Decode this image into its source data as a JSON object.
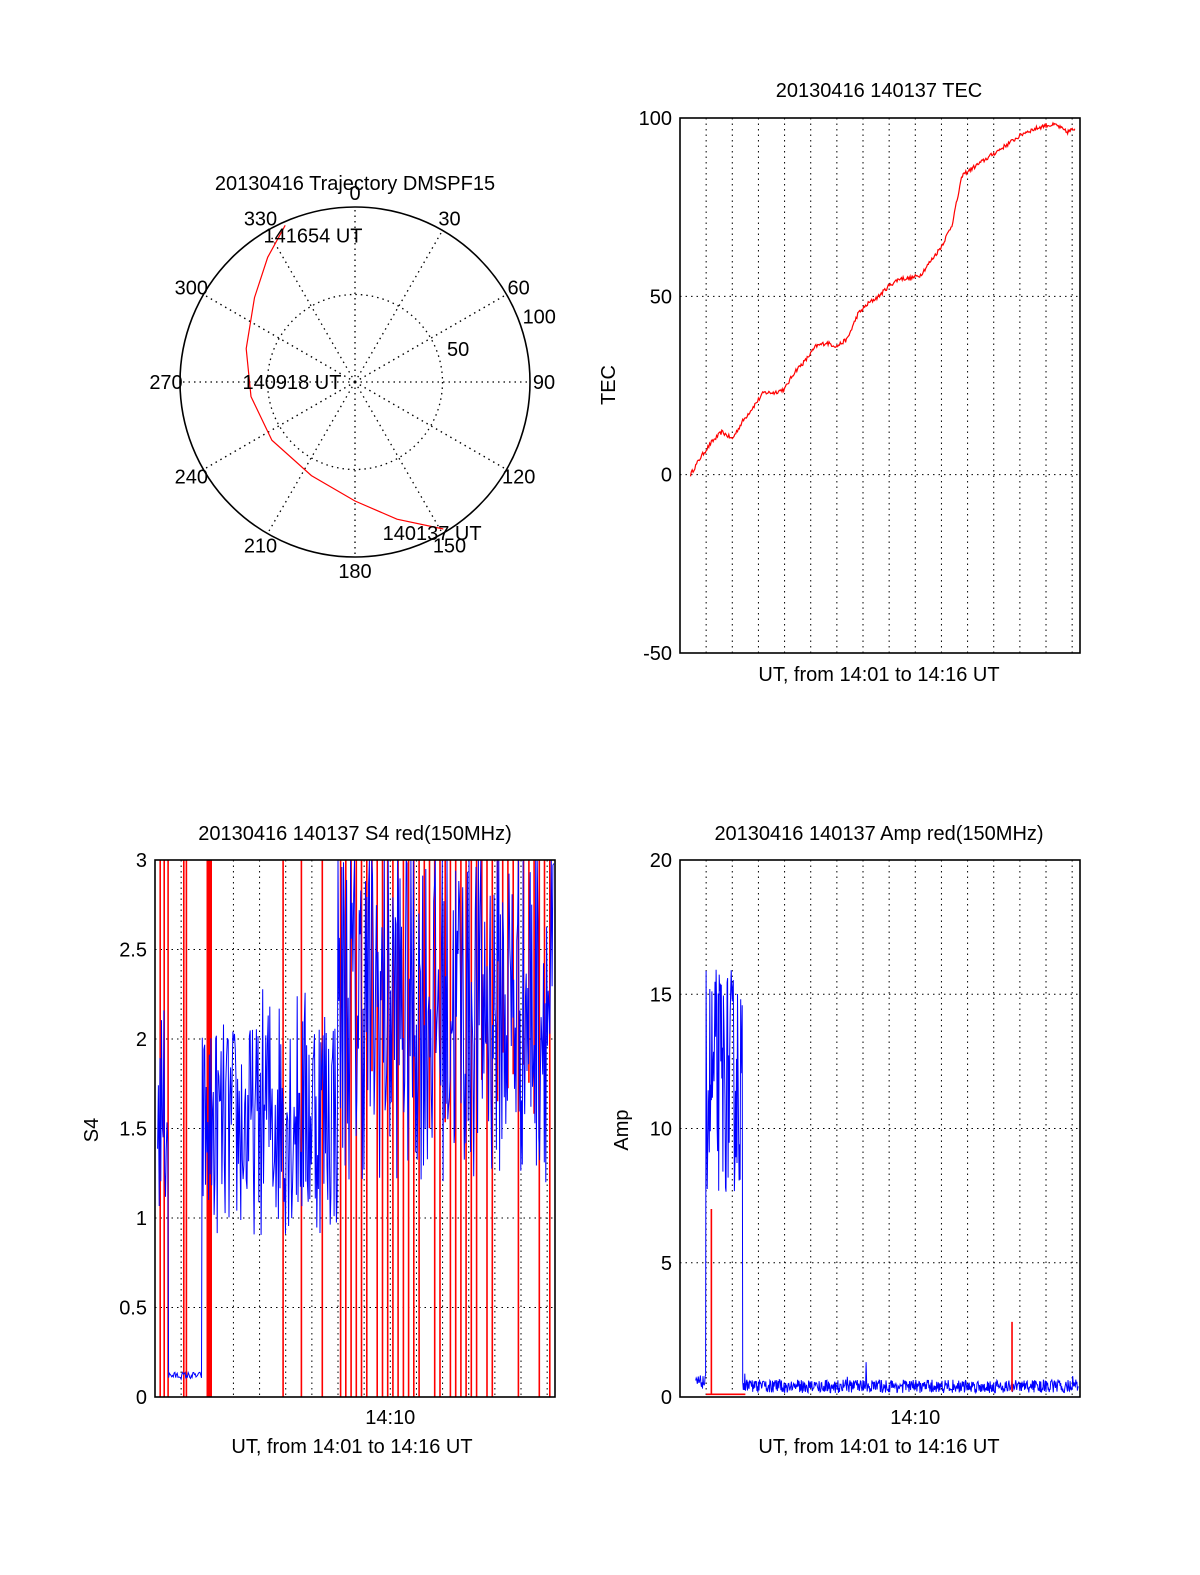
{
  "colors": {
    "red": "#ff0000",
    "blue": "#0000ff",
    "axis": "#000000",
    "grid": "#000000"
  },
  "chart_data": [
    {
      "id": "trajectory",
      "type": "polar",
      "title": "20130416 Trajectory DMSPF15",
      "angle_labels": [
        "0",
        "30",
        "60",
        "90",
        "120",
        "150",
        "180",
        "210",
        "240",
        "270",
        "300",
        "330"
      ],
      "radial_labels": [
        "50",
        "100"
      ],
      "rlim": [
        0,
        100
      ],
      "trajectory": [
        {
          "az": 149,
          "r": 98
        },
        {
          "az": 163,
          "r": 82
        },
        {
          "az": 180,
          "r": 68
        },
        {
          "az": 205,
          "r": 59
        },
        {
          "az": 235,
          "r": 58
        },
        {
          "az": 262,
          "r": 60
        },
        {
          "az": 287,
          "r": 65
        },
        {
          "az": 310,
          "r": 75
        },
        {
          "az": 325,
          "r": 87
        },
        {
          "az": 336,
          "r": 98
        }
      ],
      "annotations": [
        {
          "text": "141654 UT",
          "az": 344,
          "r": 87
        },
        {
          "text": "140918 UT",
          "az": 270,
          "r": 36
        },
        {
          "text": "140137 UT",
          "az": 153,
          "r": 97
        }
      ]
    },
    {
      "id": "tec",
      "type": "line",
      "title": "20130416 140137 TEC",
      "xlabel": "UT, from 14:01 to 14:16 UT",
      "ylabel": "TEC",
      "xlim": [
        0,
        15.3
      ],
      "ylim": [
        -50,
        100
      ],
      "yticks": [
        -50,
        0,
        50,
        100
      ],
      "xtick_labels": [],
      "grid": true,
      "series": [
        {
          "color": "red",
          "x": [
            0.4,
            0.8,
            1.2,
            1.6,
            2.0,
            2.4,
            2.8,
            3.2,
            3.6,
            4.0,
            4.4,
            4.8,
            5.2,
            5.6,
            6.0,
            6.4,
            6.8,
            7.2,
            7.6,
            8.0,
            8.4,
            8.8,
            9.2,
            9.6,
            10.0,
            10.4,
            10.8,
            11.2,
            11.6,
            12.0,
            12.4,
            12.8,
            13.2,
            13.6,
            14.0,
            14.4,
            14.8,
            15.1
          ],
          "y": [
            0,
            5,
            9,
            12,
            10,
            15,
            19,
            23,
            23,
            24,
            29,
            32,
            36,
            37,
            36,
            38,
            45,
            48,
            50,
            53,
            55,
            55,
            56,
            60,
            64,
            70,
            84,
            86,
            88,
            90,
            92,
            94,
            96,
            97,
            98,
            98,
            96,
            97
          ]
        }
      ]
    },
    {
      "id": "s4",
      "type": "line",
      "title": "20130416 140137 S4 red(150MHz)",
      "xlabel": "UT, from 14:01 to 14:16 UT",
      "ylabel": "S4",
      "xlim": [
        0,
        15.3
      ],
      "ylim": [
        0,
        3
      ],
      "yticks": [
        "0",
        "0.5",
        "1",
        "1.5",
        "2",
        "2.5",
        "3"
      ],
      "xtick_labels": [
        "14:10"
      ],
      "xtick_positions": [
        9.0
      ],
      "grid": true
    },
    {
      "id": "amp",
      "type": "line",
      "title": "20130416 140137 Amp red(150MHz)",
      "xlabel": "UT, from 14:01 to 14:16 UT",
      "ylabel": "Amp",
      "xlim": [
        0,
        15.3
      ],
      "ylim": [
        0,
        20
      ],
      "yticks": [
        "0",
        "5",
        "10",
        "15",
        "20"
      ],
      "xtick_labels": [
        "14:10"
      ],
      "xtick_positions": [
        9.0
      ],
      "grid": true
    }
  ]
}
